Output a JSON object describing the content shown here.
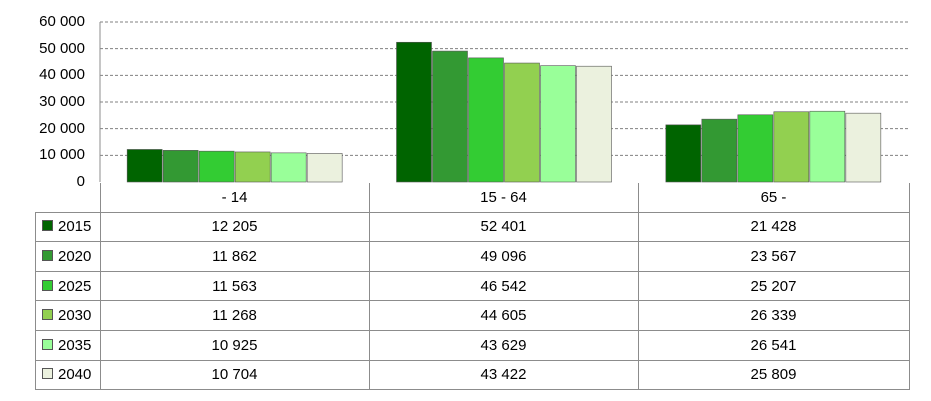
{
  "chart_data": {
    "type": "bar",
    "categories": [
      "- 14",
      "15 - 64",
      "65 -"
    ],
    "series": [
      {
        "name": "2015",
        "values": [
          12205,
          52401,
          21428
        ],
        "labels": [
          "12 205",
          "52 401",
          "21 428"
        ],
        "color": "#006400"
      },
      {
        "name": "2020",
        "values": [
          11862,
          49096,
          23567
        ],
        "labels": [
          "11 862",
          "49 096",
          "23 567"
        ],
        "color": "#339933"
      },
      {
        "name": "2025",
        "values": [
          11563,
          46542,
          25207
        ],
        "labels": [
          "11 563",
          "46 542",
          "25 207"
        ],
        "color": "#33cc33"
      },
      {
        "name": "2030",
        "values": [
          11268,
          44605,
          26339
        ],
        "labels": [
          "11 268",
          "44 605",
          "26 339"
        ],
        "color": "#92d050"
      },
      {
        "name": "2035",
        "values": [
          10925,
          43629,
          26541
        ],
        "labels": [
          "10 925",
          "43 629",
          "26 541"
        ],
        "color": "#99ff99"
      },
      {
        "name": "2040",
        "values": [
          10704,
          43422,
          25809
        ],
        "labels": [
          "10 704",
          "43 422",
          "25 809"
        ],
        "color": "#ebf1de"
      }
    ],
    "ylim": [
      0,
      60000
    ],
    "yticks": [
      "0",
      "10 000",
      "20 000",
      "30 000",
      "40 000",
      "50 000",
      "60 000"
    ],
    "grid": true,
    "legend": "data table"
  }
}
